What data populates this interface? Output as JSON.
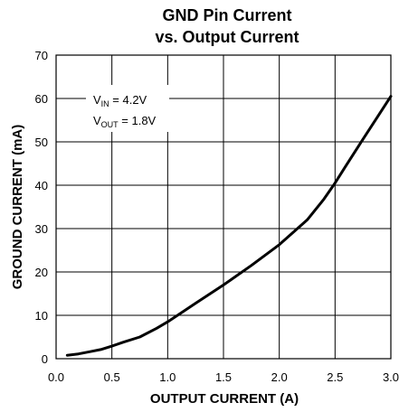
{
  "chart_data": {
    "type": "line",
    "title": [
      "GND Pin Current",
      "vs. Output Current"
    ],
    "xlabel": "OUTPUT CURRENT (A)",
    "ylabel": "GROUND CURRENT (mA)",
    "xlim": [
      0,
      3.0
    ],
    "ylim": [
      0,
      70
    ],
    "xticks": [
      "0.0",
      "0.5",
      "1.0",
      "1.5",
      "2.0",
      "2.5",
      "3.0"
    ],
    "xtick_values": [
      0,
      0.5,
      1.0,
      1.5,
      2.0,
      2.5,
      3.0
    ],
    "yticks": [
      "0",
      "10",
      "20",
      "30",
      "40",
      "50",
      "60",
      "70"
    ],
    "ytick_values": [
      0,
      10,
      20,
      30,
      40,
      50,
      60,
      70
    ],
    "grid": true,
    "annotation": {
      "line1": {
        "var": "V",
        "sub": "IN",
        "text": " = 4.2V"
      },
      "line2": {
        "var": "V",
        "sub": "OUT",
        "text": " = 1.8V"
      }
    },
    "series": [
      {
        "x": [
          0.1,
          0.2,
          0.3,
          0.4,
          0.5,
          0.6,
          0.75,
          0.9,
          1.0,
          1.1,
          1.25,
          1.5,
          1.75,
          2.0,
          2.25,
          2.4,
          2.5,
          2.6,
          2.75,
          3.0
        ],
        "y": [
          0.8,
          1.1,
          1.6,
          2.1,
          2.9,
          3.8,
          5.0,
          7.0,
          8.5,
          10.2,
          12.8,
          17.0,
          21.5,
          26.3,
          32.0,
          36.8,
          40.5,
          44.6,
          50.6,
          60.5
        ]
      }
    ]
  }
}
